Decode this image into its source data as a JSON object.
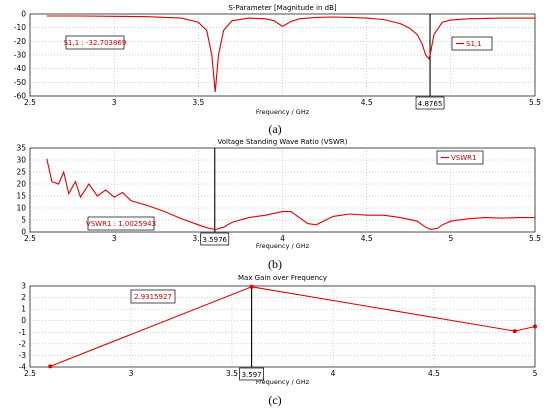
{
  "chart_data": [
    {
      "type": "line",
      "title": "S-Parameter [Magnitude in dB]",
      "xlabel": "Frequency / GHz",
      "xlim": [
        2.5,
        5.5
      ],
      "ylim": [
        -60,
        0
      ],
      "xticks": [
        2.5,
        3,
        3.5,
        4,
        4.5,
        5,
        5.5
      ],
      "yticks": [
        0,
        -10,
        -20,
        -30,
        -40,
        -50,
        -60
      ],
      "x_tick_labels": [
        "2.5",
        "3",
        "3.5",
        "",
        "4.5",
        "",
        "5.5"
      ],
      "y_tick_labels": [
        "0",
        "-10",
        "-20",
        "-30",
        "-40",
        "-50",
        "-60"
      ],
      "grid": true,
      "legend_position": "right",
      "series": [
        {
          "name": "S1,1",
          "x": [
            2.6,
            2.8,
            3.0,
            3.2,
            3.4,
            3.5,
            3.55,
            3.58,
            3.6,
            3.62,
            3.65,
            3.7,
            3.8,
            3.9,
            3.95,
            4.0,
            4.05,
            4.1,
            4.2,
            4.3,
            4.4,
            4.5,
            4.6,
            4.7,
            4.75,
            4.8,
            4.83,
            4.85,
            4.87,
            4.88,
            4.9,
            4.95,
            5.0,
            5.1,
            5.2,
            5.3,
            5.4,
            5.5
          ],
          "y": [
            -1.5,
            -1.5,
            -1.7,
            -2.0,
            -3.0,
            -6.0,
            -12.0,
            -30.0,
            -57.0,
            -30.0,
            -12.0,
            -5.0,
            -3.0,
            -3.5,
            -5.0,
            -9.0,
            -5.5,
            -3.5,
            -2.5,
            -2.2,
            -2.5,
            -3.0,
            -4.0,
            -7.0,
            -10.0,
            -15.0,
            -22.0,
            -30.0,
            -32.7,
            -28.0,
            -15.0,
            -6.0,
            -4.5,
            -3.5,
            -3.2,
            -3.0,
            -3.0,
            -3.0
          ]
        }
      ],
      "annotations": {
        "marker_label": "S1,1 : -32.703869",
        "marker_x": 4.8765,
        "marker_x_label": "4.8765"
      }
    },
    {
      "type": "line",
      "title": "Voltage Standing Wave Ratio (VSWR)",
      "xlabel": "Frequency / GHz",
      "xlim": [
        2.5,
        5.5
      ],
      "ylim": [
        0,
        35
      ],
      "xticks": [
        2.5,
        3,
        3.5,
        4,
        4.5,
        5,
        5.5
      ],
      "yticks": [
        0,
        5,
        10,
        15,
        20,
        25,
        30,
        35
      ],
      "x_tick_labels": [
        "2.5",
        "3",
        "3.5",
        "4",
        "4.5",
        "5",
        "5.5"
      ],
      "y_tick_labels": [
        "0",
        "5",
        "10",
        "15",
        "20",
        "25",
        "30",
        "35"
      ],
      "grid": true,
      "legend_position": "top-right",
      "series": [
        {
          "name": "VSWR1",
          "x": [
            2.6,
            2.63,
            2.67,
            2.7,
            2.73,
            2.77,
            2.8,
            2.85,
            2.9,
            2.95,
            3.0,
            3.05,
            3.1,
            3.2,
            3.3,
            3.4,
            3.5,
            3.55,
            3.6,
            3.65,
            3.7,
            3.8,
            3.9,
            4.0,
            4.05,
            4.1,
            4.15,
            4.2,
            4.3,
            4.4,
            4.5,
            4.6,
            4.7,
            4.8,
            4.85,
            4.88,
            4.92,
            4.95,
            5.0,
            5.1,
            5.2,
            5.3,
            5.4,
            5.5
          ],
          "y": [
            30.5,
            21.0,
            20.0,
            25.0,
            16.0,
            21.0,
            14.5,
            20.0,
            15.0,
            17.5,
            14.5,
            16.5,
            13.0,
            11.0,
            8.5,
            5.5,
            3.0,
            1.8,
            1.0,
            2.0,
            4.0,
            6.0,
            7.0,
            8.5,
            8.5,
            6.0,
            3.5,
            3.0,
            6.5,
            7.5,
            7.0,
            7.0,
            6.0,
            4.5,
            2.0,
            1.1,
            1.5,
            3.0,
            4.5,
            5.5,
            6.0,
            5.8,
            6.0,
            6.0
          ]
        }
      ],
      "annotations": {
        "marker_label": "VSWR1 : 1.0025943",
        "marker_x": 3.5976,
        "marker_x_label": "3.5976"
      }
    },
    {
      "type": "line",
      "title": "Max Gain over Frequency",
      "xlabel": "Frequency / GHz",
      "xlim": [
        2.5,
        5
      ],
      "ylim": [
        -4,
        3
      ],
      "xticks": [
        2.5,
        3,
        3.5,
        4,
        4.5,
        5
      ],
      "yticks": [
        3,
        2,
        1,
        0,
        -1,
        -2,
        -3,
        -4
      ],
      "x_tick_labels": [
        "2.5",
        "3",
        "3.5",
        "4",
        "4.5",
        "5"
      ],
      "y_tick_labels": [
        "3",
        "2",
        "1",
        "0",
        "-1",
        "-2",
        "-3",
        "-4"
      ],
      "grid": true,
      "series": [
        {
          "x": [
            2.6,
            3.597,
            4.9,
            5.0
          ],
          "y": [
            -3.95,
            2.9315927,
            -0.9,
            -0.5
          ]
        }
      ],
      "annotations": {
        "marker_label": "2.9315927",
        "marker_x": 3.597,
        "marker_x_label": "3.597"
      }
    }
  ],
  "captions": [
    "(a)",
    "(b)",
    "(c)"
  ]
}
